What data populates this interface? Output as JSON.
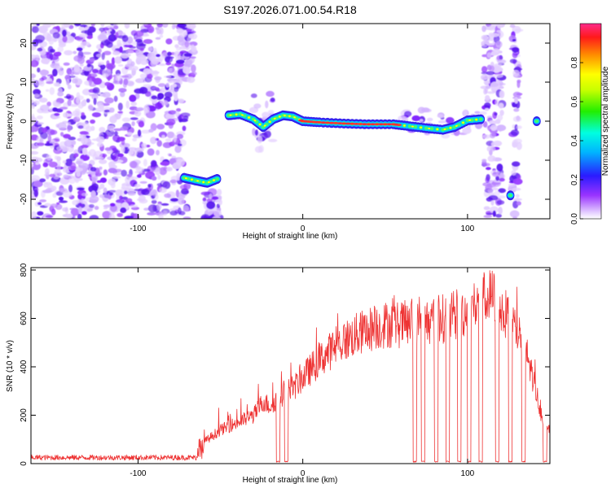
{
  "title": "S197.2026.071.00.54.R18",
  "chart_data": [
    {
      "type": "heatmap",
      "xlabel": "Height of straight line (km)",
      "ylabel": "Frequency (Hz)",
      "xlim": [
        -165,
        150
      ],
      "ylim": [
        -25,
        25
      ],
      "xticks": [
        "-100",
        "0",
        "100"
      ],
      "xtick_values": [
        -100,
        0,
        100
      ],
      "yticks": [
        "-20",
        "-10",
        "0",
        "10",
        "20"
      ],
      "ytick_values": [
        -20,
        -10,
        0,
        10,
        20
      ],
      "colorbar": {
        "label": "Normalized spectral amplitude",
        "range": [
          0,
          1
        ],
        "ticks": [
          "0.0",
          "0.2",
          "0.4",
          "0.6",
          "0.8"
        ],
        "tick_values": [
          0,
          0.2,
          0.4,
          0.6,
          0.8
        ]
      },
      "signal_track": [
        {
          "x": -72,
          "freq": -14.5
        },
        {
          "x": -65,
          "freq": -15.2
        },
        {
          "x": -58,
          "freq": -15.8
        },
        {
          "x": -52,
          "freq": -14.8
        },
        {
          "x": -45,
          "freq": 1.5
        },
        {
          "x": -38,
          "freq": 1.8
        },
        {
          "x": -30,
          "freq": 0.5
        },
        {
          "x": -24,
          "freq": -1.5
        },
        {
          "x": -18,
          "freq": 0.5
        },
        {
          "x": -12,
          "freq": 1.5
        },
        {
          "x": -6,
          "freq": 1.2
        },
        {
          "x": 0,
          "freq": 0
        },
        {
          "x": 10,
          "freq": -0.3
        },
        {
          "x": 25,
          "freq": -0.6
        },
        {
          "x": 40,
          "freq": -0.8
        },
        {
          "x": 55,
          "freq": -0.8
        },
        {
          "x": 65,
          "freq": -1.3
        },
        {
          "x": 75,
          "freq": -1.8
        },
        {
          "x": 85,
          "freq": -2.2
        },
        {
          "x": 92,
          "freq": -1.5
        },
        {
          "x": 100,
          "freq": 0.2
        },
        {
          "x": 108,
          "freq": 0.5
        },
        {
          "x": 126,
          "freq": -19
        },
        {
          "x": 142,
          "freq": 0
        }
      ]
    },
    {
      "type": "line",
      "xlabel": "Height of straight line (km)",
      "ylabel": "SNR (10 * v/v)",
      "xlim": [
        -165,
        150
      ],
      "ylim": [
        0,
        810
      ],
      "xticks": [
        "-100",
        "0",
        "100"
      ],
      "xtick_values": [
        -100,
        0,
        100
      ],
      "yticks": [
        "0",
        "200",
        "400",
        "600",
        "800"
      ],
      "ytick_values": [
        0,
        200,
        400,
        600,
        800
      ],
      "color": "#ee3333",
      "series": [
        {
          "name": "SNR",
          "x": [
            -165,
            -140,
            -110,
            -80,
            -64,
            -60,
            -50,
            -40,
            -30,
            -24,
            -20,
            -14,
            -10,
            -5,
            0,
            10,
            20,
            30,
            40,
            50,
            60,
            70,
            80,
            90,
            100,
            110,
            115,
            120,
            125,
            130,
            135,
            140,
            145,
            150
          ],
          "values": [
            25,
            25,
            25,
            25,
            25,
            90,
            140,
            170,
            200,
            260,
            240,
            280,
            300,
            320,
            360,
            430,
            490,
            530,
            560,
            580,
            580,
            590,
            600,
            610,
            640,
            680,
            700,
            650,
            600,
            560,
            480,
            350,
            200,
            150
          ]
        }
      ],
      "dropouts_km": [
        -15,
        -10,
        68,
        73,
        81,
        88,
        95,
        101,
        108,
        118,
        126,
        134,
        147
      ]
    }
  ]
}
